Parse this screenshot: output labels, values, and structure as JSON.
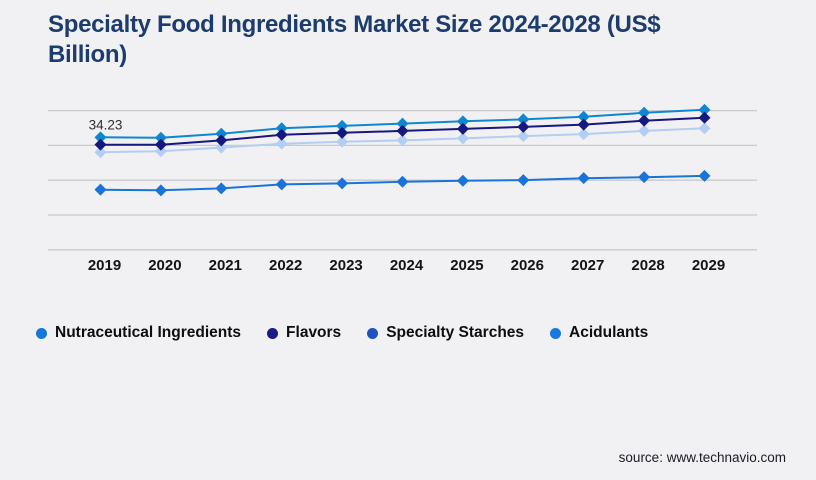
{
  "page": {
    "background": "#f1f1f3",
    "gridline_color": "#c9cacd"
  },
  "chart": {
    "title": "Specialty Food Ingredients Market Size 2024-2028 (US$ Billion)",
    "title_color": "#1d3c6e"
  },
  "chart_data": {
    "type": "line",
    "title": "Specialty Food Ingredients Market Size 2024-2028 (US$ Billion)",
    "x": [
      "2019",
      "2020",
      "2021",
      "2022",
      "2023",
      "2024",
      "2025",
      "2026",
      "2027",
      "2028",
      "2029"
    ],
    "series": [
      {
        "name": "Nutraceutical Ingredients",
        "color": "#0f87d0",
        "legend_color": "#1577da",
        "values": [
          34.23,
          34.1,
          35.3,
          37.0,
          37.7,
          38.4,
          39.1,
          39.7,
          40.5,
          41.7,
          42.6
        ]
      },
      {
        "name": "Flavors",
        "color": "#171780",
        "legend_color": "#1b1b84",
        "values": [
          32.0,
          32.0,
          33.3,
          35.0,
          35.6,
          36.2,
          36.8,
          37.4,
          38.1,
          39.3,
          40.2
        ]
      },
      {
        "name": "Specialty Starches",
        "color": "#b3cef3",
        "legend_color": "#2050c0",
        "values": [
          29.7,
          30.0,
          31.1,
          32.3,
          32.9,
          33.3,
          33.9,
          34.6,
          35.2,
          36.2,
          37.0
        ]
      },
      {
        "name": "Acidulants",
        "color": "#1b73da",
        "legend_color": "#1778e2",
        "values": [
          18.3,
          18.1,
          18.7,
          19.9,
          20.2,
          20.7,
          21.0,
          21.2,
          21.8,
          22.1,
          22.5
        ]
      }
    ],
    "annotation": {
      "text": "34.23",
      "series": "Nutraceutical Ingredients",
      "x": "2019",
      "value": 34.23
    },
    "xlabel": "",
    "ylabel": "",
    "ylim": [
      0,
      45.7
    ],
    "grid": "horizontal",
    "gridline_values": [
      0,
      10.59,
      21.18,
      31.77,
      42.36
    ],
    "legend_position": "bottom",
    "marker": "diamond",
    "note": "y-axis has no visible tick labels; series values estimated from the 34.23 anchor"
  },
  "footer": {
    "source": "source: www.technavio.com"
  }
}
